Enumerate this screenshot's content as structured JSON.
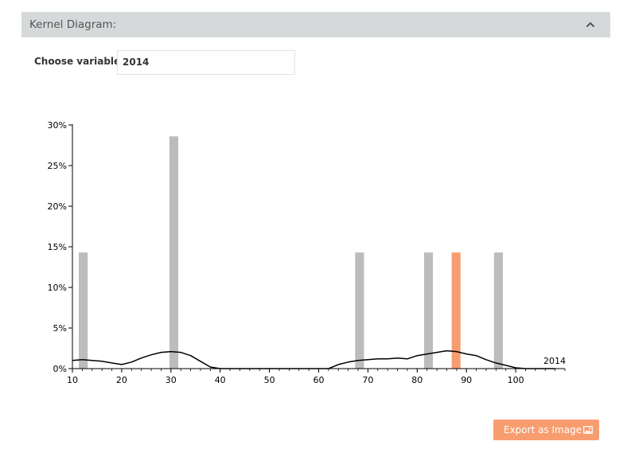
{
  "panel": {
    "title": "Kernel Diagram:"
  },
  "variable": {
    "label": "Choose variable:",
    "value": "2014"
  },
  "export": {
    "label": "Export as Image"
  },
  "colors": {
    "bar": "#bcbcbc",
    "highlight": "#f79d70",
    "kernel": "#000000",
    "header": "#d5d9da"
  },
  "icons": {
    "collapse": "chevron-up-icon",
    "export": "image-icon"
  },
  "chart_data": {
    "type": "bar",
    "xlim": [
      10,
      110
    ],
    "ylim": [
      0,
      0.3
    ],
    "x_ticks": [
      10,
      20,
      30,
      40,
      50,
      60,
      70,
      80,
      90,
      100
    ],
    "x_tick_labels": [
      "10",
      "20",
      "30",
      "40",
      "50",
      "60",
      "70",
      "80",
      "90",
      "100"
    ],
    "y_ticks": [
      0,
      0.05,
      0.1,
      0.15,
      0.2,
      0.25,
      0.3
    ],
    "y_tick_labels": [
      "0%",
      "5%",
      "10%",
      "15%",
      "20%",
      "25%",
      "30%"
    ],
    "series_label": "2014",
    "bar_width": 1.8,
    "bars": [
      {
        "x": 12.2,
        "value": 0.143
      },
      {
        "x": 30.6,
        "value": 0.286
      },
      {
        "x": 68.3,
        "value": 0.143
      },
      {
        "x": 82.3,
        "value": 0.143
      },
      {
        "x": 87.9,
        "value": 0.143,
        "highlight": true
      },
      {
        "x": 96.5,
        "value": 0.143
      }
    ],
    "kernel": {
      "x": [
        10,
        12,
        14,
        16,
        18,
        20,
        22,
        24,
        26,
        28,
        30,
        32,
        34,
        36,
        38,
        40,
        42,
        45,
        50,
        55,
        60,
        62,
        64,
        66,
        68,
        70,
        72,
        74,
        76,
        78,
        80,
        82,
        84,
        86,
        88,
        90,
        92,
        94,
        96,
        98,
        100,
        102,
        104,
        106,
        108
      ],
      "y": [
        0.01,
        0.011,
        0.01,
        0.009,
        0.007,
        0.005,
        0.008,
        0.013,
        0.017,
        0.02,
        0.021,
        0.02,
        0.016,
        0.009,
        0.002,
        0.0,
        0.0,
        0.0,
        0.0,
        0.0,
        0.0,
        0.0,
        0.005,
        0.008,
        0.01,
        0.011,
        0.012,
        0.012,
        0.013,
        0.012,
        0.016,
        0.018,
        0.02,
        0.022,
        0.021,
        0.018,
        0.016,
        0.011,
        0.007,
        0.004,
        0.001,
        0.0,
        0.0,
        0.0,
        0.0
      ]
    }
  }
}
